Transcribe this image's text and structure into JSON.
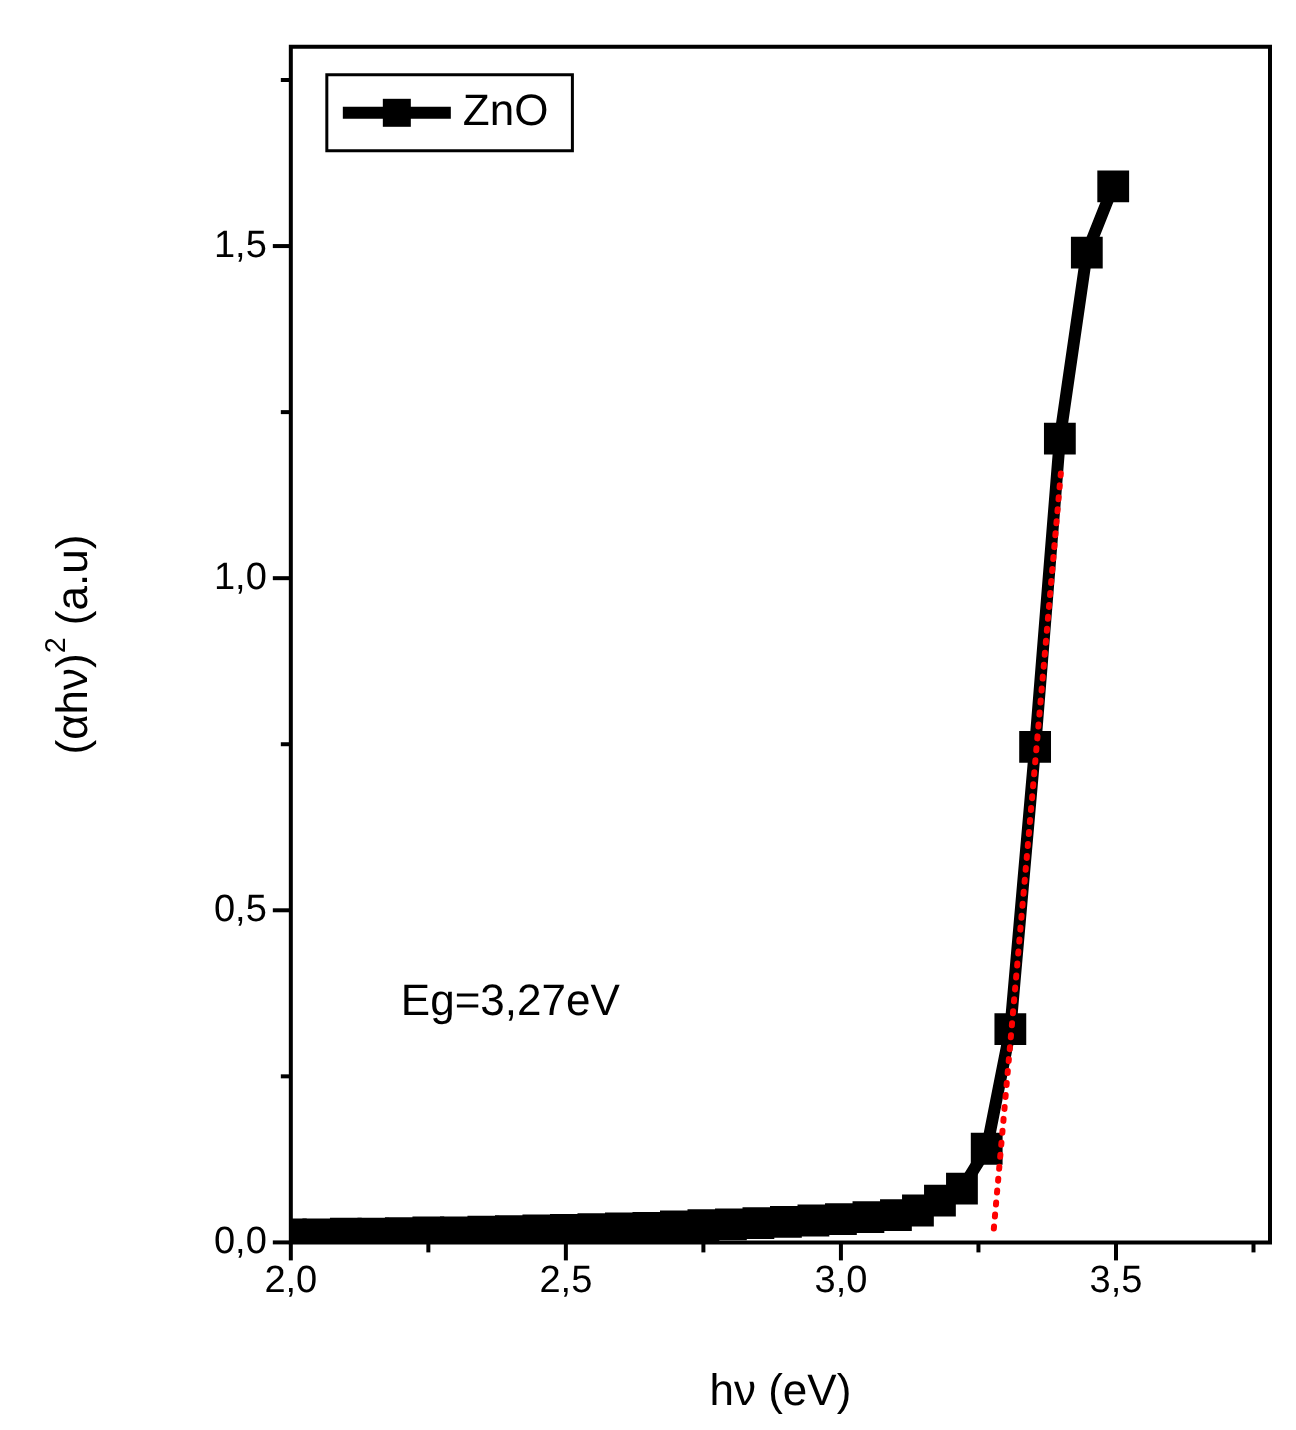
{
  "chart_data": {
    "type": "line",
    "xlabel": "hν (eV)",
    "ylabel": "(αhν)$^{2}$ (a.u)",
    "annotations": [
      "Eg=3,27eV"
    ],
    "x": [
      2.0,
      2.05,
      2.1,
      2.15,
      2.2,
      2.25,
      2.3,
      2.35,
      2.4,
      2.45,
      2.5,
      2.55,
      2.6,
      2.65,
      2.7,
      2.75,
      2.8,
      2.85,
      2.9,
      2.95,
      3.0,
      3.05,
      3.1,
      3.14,
      3.18,
      3.22,
      3.265,
      3.308,
      3.353,
      3.398,
      3.447,
      3.495
    ],
    "series": [
      {
        "name": "ZnO",
        "color": "#000000",
        "marker": "square",
        "values": [
          0.012,
          0.012,
          0.013,
          0.013,
          0.014,
          0.015,
          0.015,
          0.016,
          0.017,
          0.018,
          0.019,
          0.02,
          0.021,
          0.022,
          0.024,
          0.026,
          0.027,
          0.029,
          0.031,
          0.033,
          0.035,
          0.038,
          0.041,
          0.048,
          0.063,
          0.081,
          0.141,
          0.321,
          0.746,
          1.21,
          1.49,
          1.59
        ]
      },
      {
        "type": "line",
        "color": "#ff0000",
        "line_style": "dotted",
        "marker": "none",
        "x": [
          3.278,
          3.4
        ],
        "values": [
          0.021,
          1.16
        ]
      }
    ],
    "xlim": [
      2.0,
      3.78
    ],
    "ylim": [
      0,
      1.8
    ],
    "xticks": [
      {
        "value": 2.0,
        "label": "2,0"
      },
      {
        "value": 2.25,
        "label": null
      },
      {
        "value": 2.5,
        "label": "2,5"
      },
      {
        "value": 2.75,
        "label": null
      },
      {
        "value": 3.0,
        "label": "3,0"
      },
      {
        "value": 3.25,
        "label": null
      },
      {
        "value": 3.5,
        "label": "3,5"
      },
      {
        "value": 3.75,
        "label": null
      }
    ],
    "yticks": [
      {
        "value": 0,
        "label": "0,0"
      },
      {
        "value": 0.25,
        "label": null
      },
      {
        "value": 0.5,
        "label": "0,5"
      },
      {
        "value": 0.75,
        "label": null
      },
      {
        "value": 1.0,
        "label": "1,0"
      },
      {
        "value": 1.25,
        "label": null
      },
      {
        "value": 1.5,
        "label": "1,5"
      },
      {
        "value": 1.75,
        "label": null
      }
    ],
    "grid": false,
    "legend": "top left"
  }
}
